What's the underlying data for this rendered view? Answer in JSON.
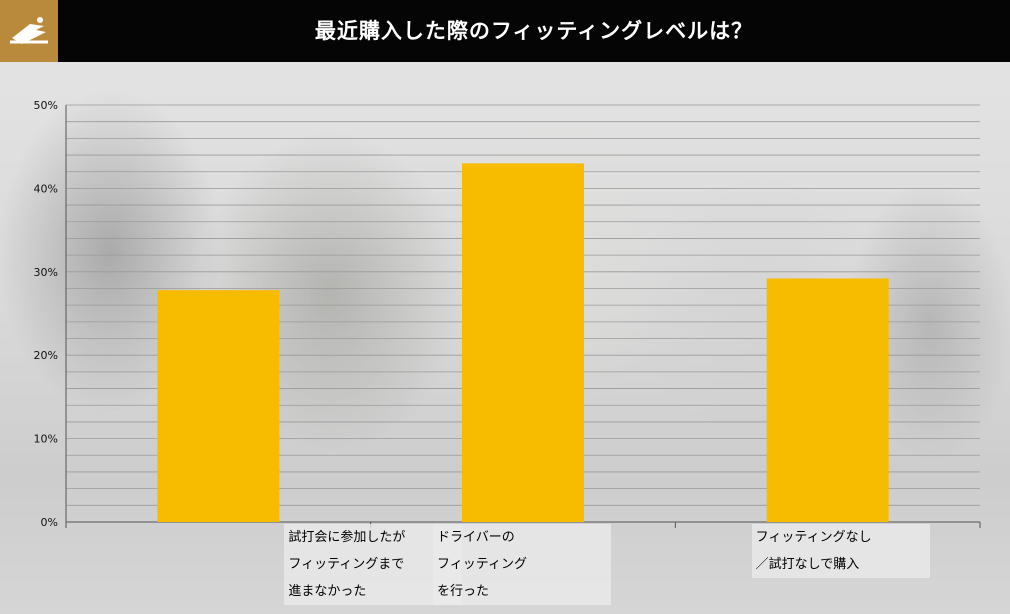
{
  "header": {
    "title": "最近購入した際のフィッティングレベルは？",
    "logo_icon": "golf-swing-logo-icon",
    "logo_color": "#b98a3c"
  },
  "colors": {
    "bar": "#f7bc00",
    "header_bg": "#050505",
    "grid": "#9a9a9a"
  },
  "chart_data": {
    "type": "bar",
    "title": "最近購入した際のフィッティングレベルは？",
    "categories": [
      "試打会に参加したが\nフィッティングまで\n進まなかった",
      "ドライバーの\nフィッティング\nを行った",
      "フィッティングなし\n／試打なしで購入"
    ],
    "values": [
      27.8,
      43.0,
      29.2
    ],
    "ylim": [
      0,
      50
    ],
    "yticks": [
      "0%",
      "10%",
      "20%",
      "30%",
      "40%",
      "50%"
    ],
    "xlabel": "",
    "ylabel": "",
    "grid": true
  }
}
